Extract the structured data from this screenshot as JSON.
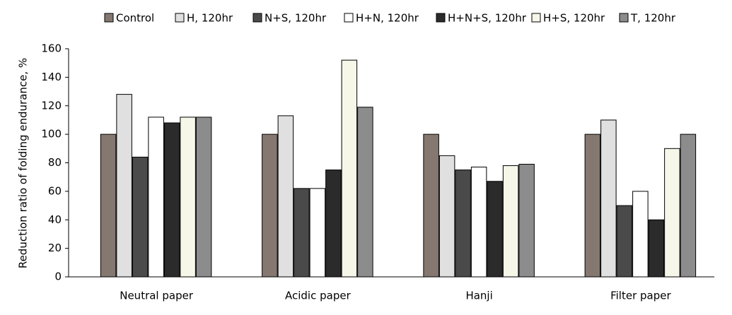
{
  "chart_data": {
    "type": "bar",
    "y_label": "Reduction ratio of folding endurance, %",
    "categories": [
      "Neutral paper",
      "Acidic paper",
      "Hanji",
      "Filter paper"
    ],
    "series": [
      {
        "name": "Control",
        "color": "#857870",
        "values": [
          100,
          100,
          100,
          100
        ]
      },
      {
        "name": "H, 120hr",
        "color": "#e0e0e0",
        "values": [
          128,
          113,
          85,
          110
        ]
      },
      {
        "name": "N+S, 120hr",
        "color": "#4a4a4a",
        "values": [
          84,
          62,
          75,
          50
        ]
      },
      {
        "name": "H+N, 120hr",
        "color": "#ffffff",
        "values": [
          112,
          62,
          77,
          60
        ]
      },
      {
        "name": "H+N+S, 120hr",
        "color": "#2b2b2b",
        "values": [
          108,
          75,
          67,
          40
        ]
      },
      {
        "name": "H+S, 120hr",
        "color": "#f6f6e9",
        "values": [
          112,
          152,
          78,
          90
        ]
      },
      {
        "name": "T, 120hr",
        "color": "#8c8c8c",
        "values": [
          112,
          119,
          79,
          100
        ]
      }
    ],
    "ylim": [
      0,
      160
    ],
    "yticks": [
      0,
      20,
      40,
      60,
      80,
      100,
      120,
      140,
      160
    ]
  }
}
